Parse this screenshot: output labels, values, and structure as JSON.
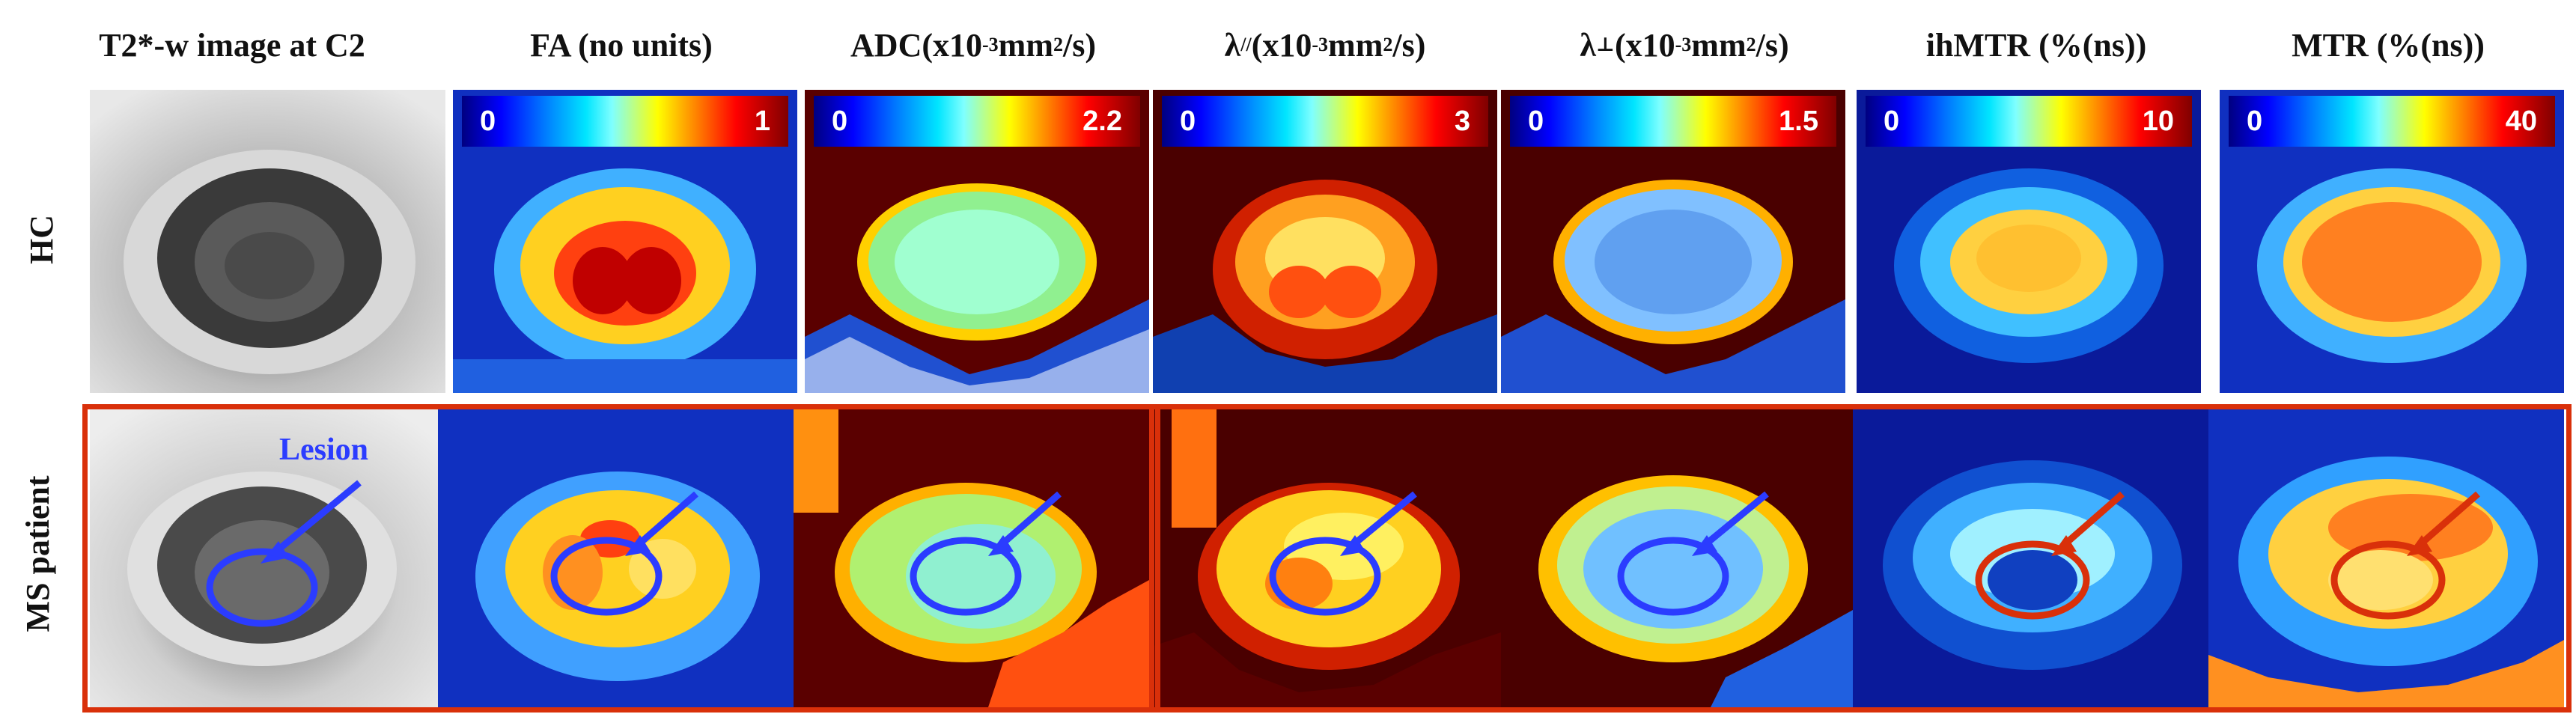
{
  "columns": [
    {
      "id": "t2",
      "title": "T2*-w image at C2"
    },
    {
      "id": "fa",
      "title": "FA (no units)",
      "cbar_min": "0",
      "cbar_max": "1"
    },
    {
      "id": "adc",
      "title_pre": "ADC(x10",
      "title_sup": "-3",
      "title_mid": "mm",
      "title_sup2": "2",
      "title_post": "/s)",
      "cbar_min": "0",
      "cbar_max": "2.2"
    },
    {
      "id": "lpar",
      "title_pre": "λ",
      "title_sub": "//",
      "title_mid": " (x10",
      "title_sup": "-3",
      "title_mid2": "mm",
      "title_sup2": "2",
      "title_post": "/s)",
      "cbar_min": "0",
      "cbar_max": "3"
    },
    {
      "id": "lperp",
      "title_pre": "λ",
      "title_sub": "⊥",
      "title_mid": " (x10",
      "title_sup": "-3",
      "title_mid2": "mm",
      "title_sup2": "2",
      "title_post": "/s)",
      "cbar_min": "0",
      "cbar_max": "1.5"
    },
    {
      "id": "ihmtr",
      "title": "ihMTR (%(ns))",
      "cbar_min": "0",
      "cbar_max": "10"
    },
    {
      "id": "mtr",
      "title": "MTR (%(ns))",
      "cbar_min": "0",
      "cbar_max": "40"
    }
  ],
  "rows": [
    {
      "id": "hc",
      "label": "HC"
    },
    {
      "id": "ms",
      "label": "MS patient"
    }
  ],
  "annotation": {
    "lesion_label": "Lesion"
  },
  "colors": {
    "frame_red": "#d9300a",
    "lesion_blue": "#2b3cff",
    "lesion_red": "#d9300a",
    "map_background": "#5a0000"
  }
}
